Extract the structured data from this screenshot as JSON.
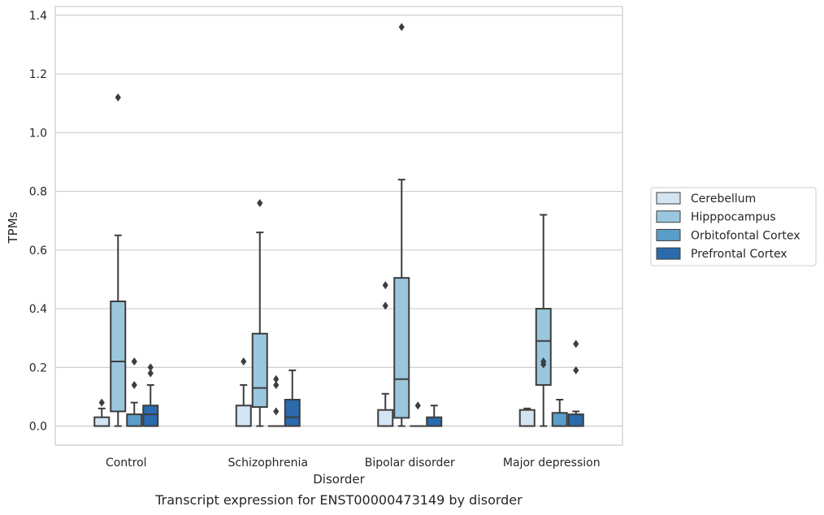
{
  "caption": "Transcript expression for ENST00000473149 by disorder",
  "chart_data": {
    "type": "box",
    "xlabel": "Disorder",
    "ylabel": "TPMs",
    "ylim": [
      -0.065,
      1.43
    ],
    "yticks": [
      "0.0",
      "0.2",
      "0.4",
      "0.6",
      "0.8",
      "1.0",
      "1.2",
      "1.4"
    ],
    "categories": [
      "Control",
      "Schizophrenia",
      "Bipolar disorder",
      "Major depression"
    ],
    "grid": true,
    "legend_position": "right",
    "series": [
      {
        "name": "Cerebellum",
        "color": "#d3e4f3",
        "boxes": [
          {
            "whisker_low": 0.0,
            "q1": 0.0,
            "median": 0.0,
            "q3": 0.03,
            "whisker_high": 0.06,
            "outliers": [
              0.08
            ]
          },
          {
            "whisker_low": 0.0,
            "q1": 0.0,
            "median": 0.0,
            "q3": 0.07,
            "whisker_high": 0.14,
            "outliers": [
              0.22
            ]
          },
          {
            "whisker_low": 0.0,
            "q1": 0.0,
            "median": 0.0,
            "q3": 0.055,
            "whisker_high": 0.11,
            "outliers": [
              0.41,
              0.48
            ]
          },
          {
            "whisker_low": 0.0,
            "q1": 0.0,
            "median": 0.0,
            "q3": 0.055,
            "whisker_high": 0.06,
            "outliers": []
          }
        ]
      },
      {
        "name": "Hipppocampus",
        "color": "#9ac7de",
        "boxes": [
          {
            "whisker_low": 0.0,
            "q1": 0.05,
            "median": 0.22,
            "q3": 0.425,
            "whisker_high": 0.65,
            "outliers": [
              1.12
            ]
          },
          {
            "whisker_low": 0.0,
            "q1": 0.065,
            "median": 0.13,
            "q3": 0.315,
            "whisker_high": 0.66,
            "outliers": [
              0.76
            ]
          },
          {
            "whisker_low": 0.0,
            "q1": 0.028,
            "median": 0.16,
            "q3": 0.505,
            "whisker_high": 0.84,
            "outliers": [
              1.36
            ]
          },
          {
            "whisker_low": 0.0,
            "q1": 0.14,
            "median": 0.29,
            "q3": 0.4,
            "whisker_high": 0.72,
            "outliers": [
              0.21,
              0.22
            ]
          }
        ]
      },
      {
        "name": "Orbitofontal Cortex",
        "color": "#5a9dc9",
        "boxes": [
          {
            "whisker_low": 0.0,
            "q1": 0.0,
            "median": 0.0,
            "q3": 0.04,
            "whisker_high": 0.08,
            "outliers": [
              0.14,
              0.22
            ]
          },
          {
            "whisker_low": 0.0,
            "q1": 0.0,
            "median": 0.0,
            "q3": 0.0,
            "whisker_high": 0.0,
            "outliers": [
              0.05,
              0.14,
              0.16
            ]
          },
          {
            "whisker_low": 0.0,
            "q1": 0.0,
            "median": 0.0,
            "q3": 0.0,
            "whisker_high": 0.0,
            "outliers": [
              0.07
            ]
          },
          {
            "whisker_low": 0.0,
            "q1": 0.0,
            "median": 0.0,
            "q3": 0.045,
            "whisker_high": 0.09,
            "outliers": []
          }
        ]
      },
      {
        "name": "Prefrontal Cortex",
        "color": "#2a6aad",
        "boxes": [
          {
            "whisker_low": 0.0,
            "q1": 0.0,
            "median": 0.04,
            "q3": 0.07,
            "whisker_high": 0.14,
            "outliers": [
              0.18,
              0.2
            ]
          },
          {
            "whisker_low": 0.0,
            "q1": 0.0,
            "median": 0.03,
            "q3": 0.09,
            "whisker_high": 0.19,
            "outliers": []
          },
          {
            "whisker_low": 0.0,
            "q1": 0.0,
            "median": 0.0,
            "q3": 0.03,
            "whisker_high": 0.07,
            "outliers": []
          },
          {
            "whisker_low": 0.0,
            "q1": 0.0,
            "median": 0.0,
            "q3": 0.04,
            "whisker_high": 0.05,
            "outliers": [
              0.19,
              0.28
            ]
          }
        ]
      }
    ]
  }
}
